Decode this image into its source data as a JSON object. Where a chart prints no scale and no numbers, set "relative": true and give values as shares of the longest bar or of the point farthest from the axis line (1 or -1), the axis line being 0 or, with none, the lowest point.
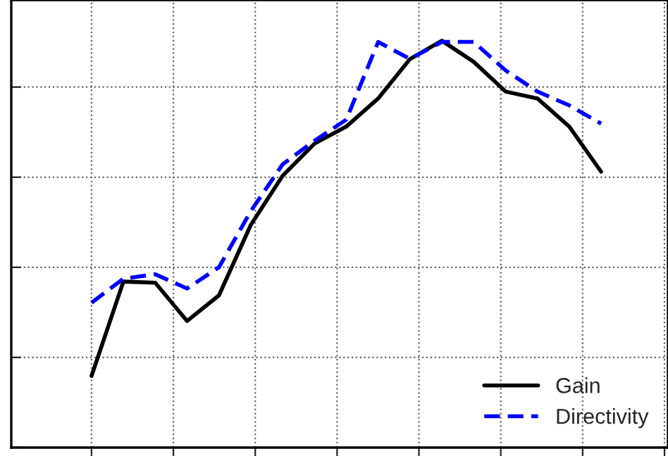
{
  "chart_data": {
    "type": "line",
    "relative": true,
    "categories": [
      null,
      null,
      null,
      null,
      null,
      null,
      null,
      null,
      null,
      null,
      null,
      null,
      null,
      null,
      null,
      null,
      null
    ],
    "series": [
      {
        "name": "Gain",
        "color": "#000000",
        "line_style": "solid",
        "values": [
          0.176,
          0.408,
          0.405,
          0.311,
          0.374,
          0.547,
          0.668,
          0.747,
          0.789,
          0.858,
          0.955,
          1.0,
          0.948,
          0.875,
          0.858,
          0.789,
          0.678
        ]
      },
      {
        "name": "Directivity",
        "color": "#0000ff",
        "line_style": "dashed",
        "values": [
          0.356,
          0.415,
          0.426,
          0.391,
          0.443,
          0.581,
          0.696,
          0.754,
          0.806,
          0.997,
          0.955,
          0.997,
          0.997,
          0.927,
          0.875,
          0.841,
          0.796
        ]
      }
    ],
    "grid": true,
    "legend": "bottom right",
    "tick_labels": false,
    "marker": "none"
  }
}
